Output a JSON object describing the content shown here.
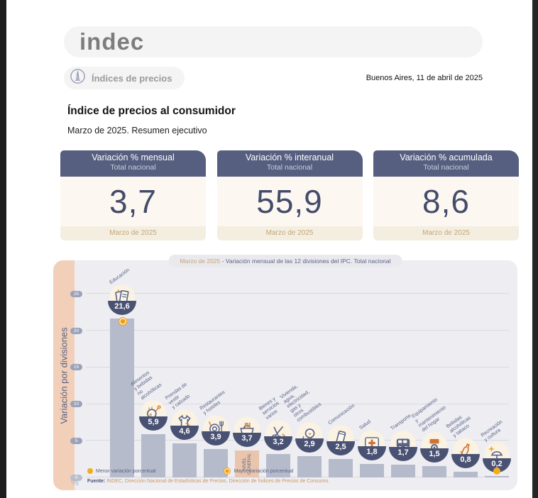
{
  "header": {
    "logo": "indec",
    "badge": "Índices de precios",
    "badge_icon": "price-index-icon",
    "date_line": "Buenos Aires, 11 de abril de 2025"
  },
  "document": {
    "title": "Índice de precios al consumidor",
    "subtitle": "Marzo de 2025. Resumen ejecutivo"
  },
  "cards": [
    {
      "title": "Variación % mensual",
      "subtitle": "Total nacional",
      "value": "3,7",
      "period": "Marzo de 2025"
    },
    {
      "title": "Variación % interanual",
      "subtitle": "Total nacional",
      "value": "55,9",
      "period": "Marzo de 2025"
    },
    {
      "title": "Variación % acumulada",
      "subtitle": "Total nacional",
      "value": "8,6",
      "period": "Marzo de 2025"
    }
  ],
  "chart_data": {
    "type": "bar",
    "title_highlight": "Marzo de 2025",
    "title_rest": " - Variación mensual de las 12 divisiones del IPC. Total nacional",
    "ylabel": "Variación por divisiones",
    "unit_label": "%",
    "yticks": [
      0,
      5,
      10,
      15,
      20,
      25
    ],
    "ylim": [
      0,
      26
    ],
    "grid": true,
    "categories": [
      "Educación",
      "Alimentos y bebidas\nno alcohólicas",
      "Prendas de vestir\ny calzado",
      "Restaurantes\ny hoteles",
      "NIVEL GENERAL",
      "Bienes y\nservicios varios",
      "Vivienda, agua,\nelectricidad, gas y\notros combustibles",
      "Comunicación",
      "Salud",
      "Transporte",
      "Equipamiento\ny mantenimiento\ndel hogar",
      "Bebidas\nalcohólicas\ny tabaco",
      "Recreación\ny cultura"
    ],
    "values": [
      21.6,
      5.9,
      4.6,
      3.9,
      3.7,
      3.2,
      2.9,
      2.5,
      1.8,
      1.7,
      1.5,
      0.8,
      0.2
    ],
    "display_values": [
      "21,6",
      "5,9",
      "4,6",
      "3,9",
      "3,7",
      "3,2",
      "2,9",
      "2,5",
      "1,8",
      "1,7",
      "1,5",
      "0,8",
      "0,2"
    ],
    "icons": [
      "educacion-books-icon",
      "alimentos-food-icon",
      "prendas-shirt-icon",
      "restaurantes-plate-icon",
      "canasta-basket-icon",
      "bienes-scissors-icon",
      "vivienda-bulb-icon",
      "comunicacion-phone-icon",
      "salud-cross-icon",
      "transporte-bus-icon",
      "equipamiento-appliance-icon",
      "bebidas-bottle-icon",
      "recreacion-umbrella-icon"
    ],
    "general_index": 4,
    "general_inner_label": "NIVEL\nGENERAL",
    "markers": {
      "max_index": 0,
      "min_index": 12
    },
    "legend": [
      {
        "label": "Menor variación porcentual",
        "style": "plain"
      },
      {
        "label": "Mayor variación porcentual",
        "style": "ring"
      }
    ],
    "source_bold": "Fuente:",
    "source_text": " INDEC, Dirección Nacional de Estadísticas de Precios. Dirección de Índices de Precios de Consumo.",
    "colors": {
      "bar": "#b5bbca",
      "general_bar": "#e9c5ad",
      "badge": "#4a5273",
      "min_marker": "#f2ae18",
      "max_marker": "#f29c0f",
      "card_header": "#575f80",
      "accent_tan": "#c8a473"
    }
  }
}
